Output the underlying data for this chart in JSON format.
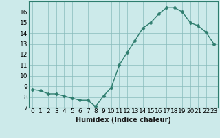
{
  "x": [
    0,
    1,
    2,
    3,
    4,
    5,
    6,
    7,
    8,
    9,
    10,
    11,
    12,
    13,
    14,
    15,
    16,
    17,
    18,
    19,
    20,
    21,
    22,
    23
  ],
  "y": [
    8.7,
    8.6,
    8.3,
    8.3,
    8.1,
    7.9,
    7.7,
    7.7,
    7.1,
    8.1,
    8.9,
    11.0,
    12.2,
    13.3,
    14.5,
    15.0,
    15.8,
    16.4,
    16.4,
    16.0,
    15.0,
    14.7,
    14.1,
    13.0
  ],
  "line_color": "#2e7d6e",
  "marker": "D",
  "marker_size": 2.5,
  "linewidth": 1.0,
  "bg_color": "#cceaea",
  "grid_color": "#88bbbb",
  "xlabel": "Humidex (Indice chaleur)",
  "xlabel_fontsize": 7,
  "tick_fontsize": 6.5,
  "ylim": [
    7,
    17
  ],
  "xlim": [
    -0.5,
    23.5
  ],
  "yticks": [
    7,
    8,
    9,
    10,
    11,
    12,
    13,
    14,
    15,
    16
  ],
  "xticks": [
    0,
    1,
    2,
    3,
    4,
    5,
    6,
    7,
    8,
    9,
    10,
    11,
    12,
    13,
    14,
    15,
    16,
    17,
    18,
    19,
    20,
    21,
    22,
    23
  ]
}
